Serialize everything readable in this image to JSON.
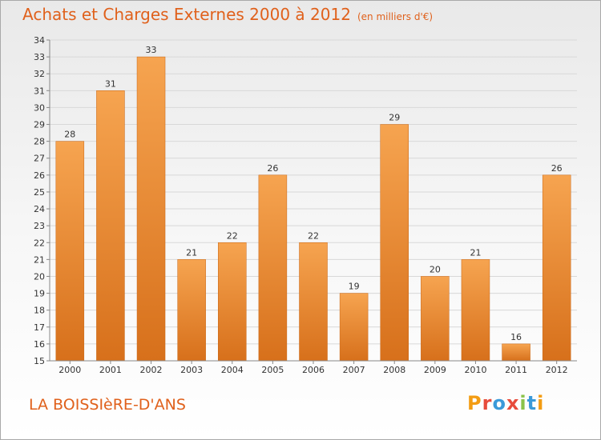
{
  "header": {
    "title": "Achats et Charges Externes 2000 à 2012",
    "unit_note": "(en milliers d'€)"
  },
  "footer": {
    "commune": "LA BOISSIèRE-D'ANS",
    "logo_text": "Proxiti"
  },
  "colors": {
    "title": "#E0611C",
    "bar_top": "#F6A450",
    "bar_bottom": "#D7701B",
    "logo_letters": [
      "#F39C12",
      "#E74C3C",
      "#3B9AD9",
      "#E74C3C",
      "#8BC34A",
      "#3B9AD9",
      "#F39C12"
    ]
  },
  "chart_data": {
    "type": "bar",
    "title": "Achats et Charges Externes 2000 à 2012",
    "subtitle": "(en milliers d'€)",
    "xlabel": "",
    "ylabel": "",
    "categories": [
      "2000",
      "2001",
      "2002",
      "2003",
      "2004",
      "2005",
      "2006",
      "2007",
      "2008",
      "2009",
      "2010",
      "2011",
      "2012"
    ],
    "values": [
      28,
      31,
      33,
      21,
      22,
      26,
      22,
      19,
      29,
      20,
      21,
      16,
      26
    ],
    "ylim": [
      15,
      34
    ],
    "yticks": [
      15,
      16,
      17,
      18,
      19,
      20,
      21,
      22,
      23,
      24,
      25,
      26,
      27,
      28,
      29,
      30,
      31,
      32,
      33,
      34
    ],
    "grid": true,
    "legend": "none"
  }
}
